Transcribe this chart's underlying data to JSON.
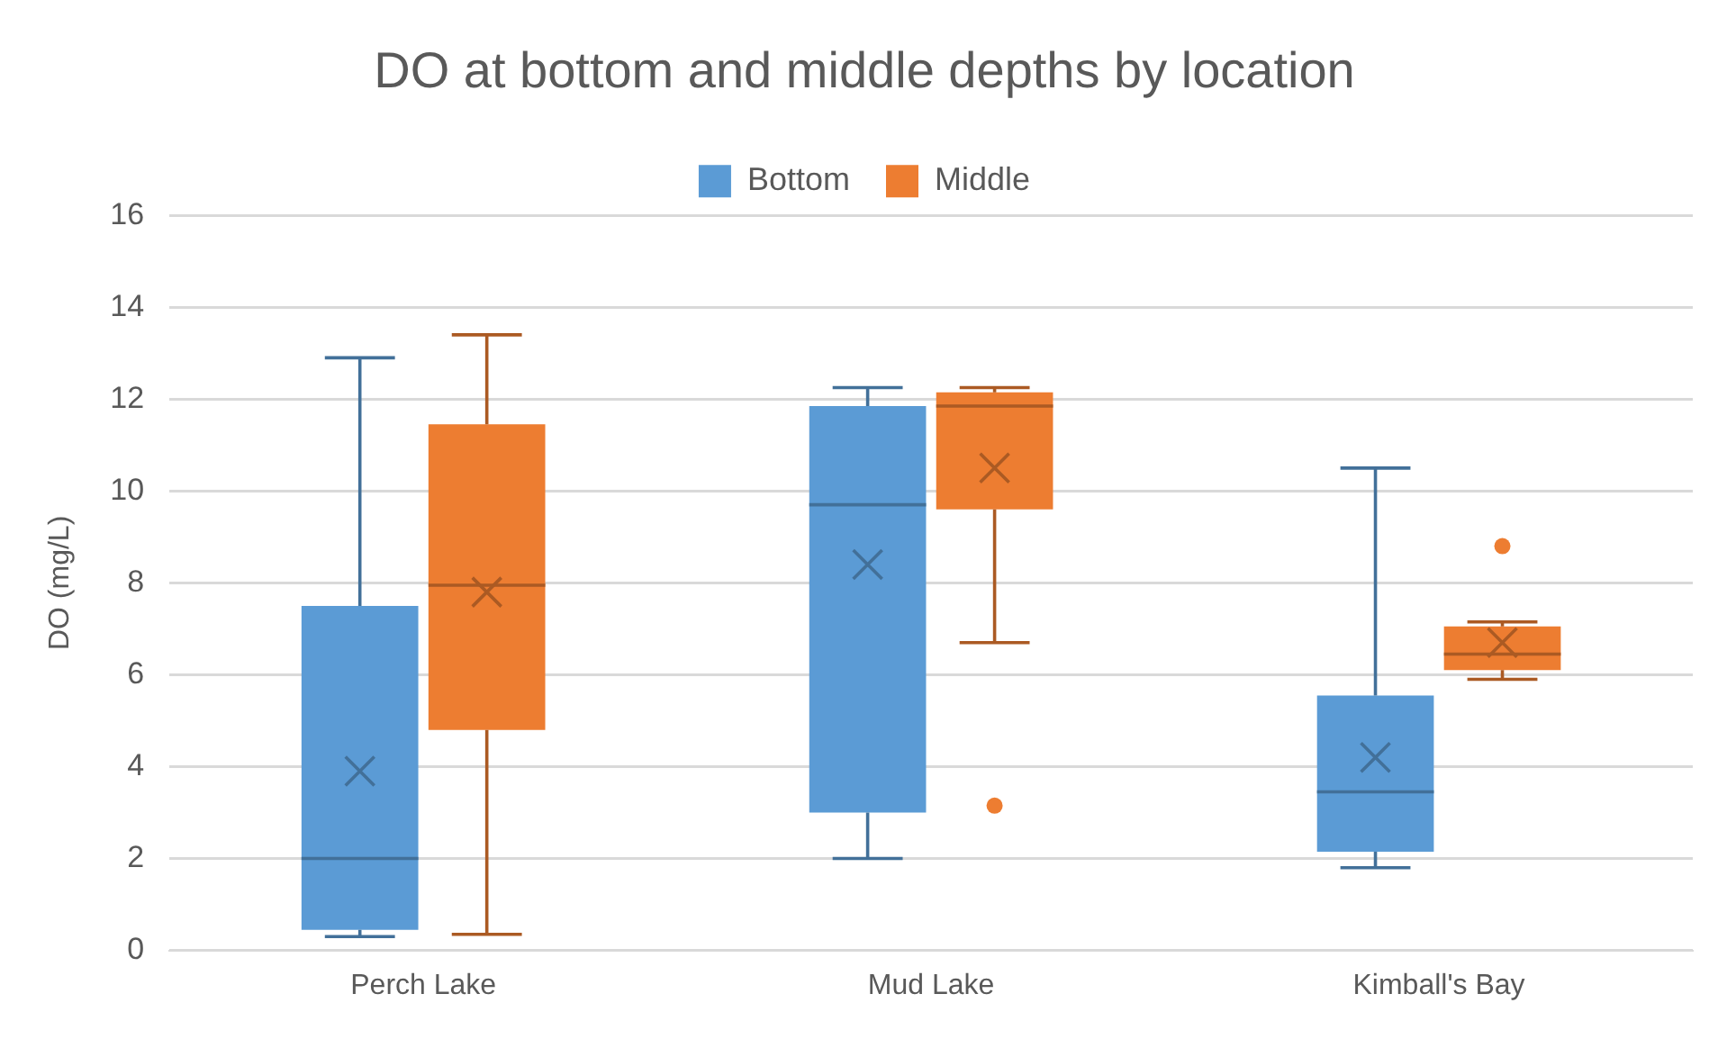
{
  "chart_data": {
    "type": "box",
    "title": "DO at bottom and middle depths by location",
    "ylabel": "DO (mg/L)",
    "categories": [
      "Perch Lake",
      "Mud Lake",
      "Kimball's Bay"
    ],
    "series": [
      {
        "name": "Bottom",
        "color": "#5b9bd5",
        "boxes": [
          {
            "low": 0.3,
            "q1": 0.45,
            "median": 2.0,
            "q3": 7.5,
            "high": 12.9,
            "mean": 3.9
          },
          {
            "low": 2.0,
            "q1": 3.0,
            "median": 9.7,
            "q3": 11.85,
            "high": 12.25,
            "mean": 8.4
          },
          {
            "low": 1.8,
            "q1": 2.15,
            "median": 3.45,
            "q3": 5.55,
            "high": 10.5,
            "mean": 4.2
          }
        ]
      },
      {
        "name": "Middle",
        "color": "#ed7d31",
        "boxes": [
          {
            "low": 0.35,
            "q1": 4.8,
            "median": 7.95,
            "q3": 11.45,
            "high": 13.4,
            "mean": 7.8
          },
          {
            "low": 6.7,
            "q1": 9.6,
            "median": 11.85,
            "q3": 12.15,
            "high": 12.25,
            "mean": 10.5,
            "outliers": [
              3.15
            ]
          },
          {
            "low": 5.9,
            "q1": 6.1,
            "median": 6.45,
            "q3": 7.05,
            "high": 7.15,
            "mean": 6.7,
            "outliers": [
              8.8
            ]
          }
        ]
      }
    ],
    "ylim": [
      0,
      16
    ],
    "yticks": [
      0,
      2,
      4,
      6,
      8,
      10,
      12,
      14,
      16
    ],
    "grid": "y",
    "legend": "top"
  }
}
